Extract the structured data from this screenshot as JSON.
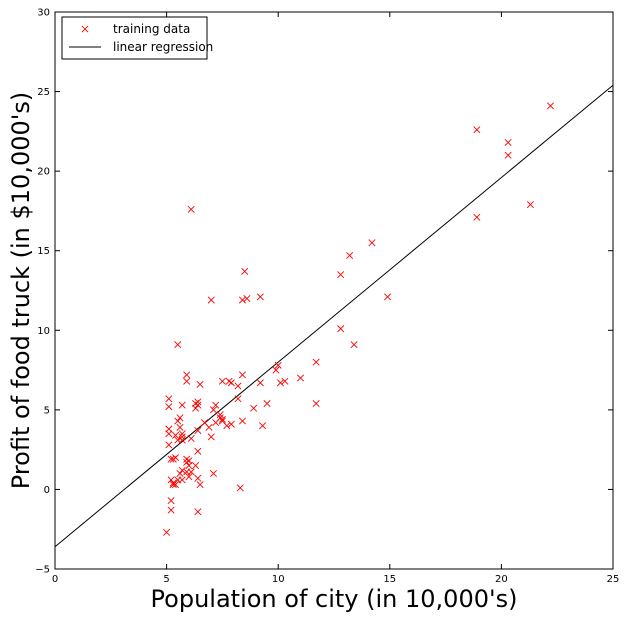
{
  "chart_data": {
    "type": "scatter",
    "xlabel": "Population of city (in 10,000's)",
    "ylabel": "Profit of food truck (in $10,000's)",
    "xlim": [
      0,
      25
    ],
    "ylim": [
      -5,
      30
    ],
    "xticks": [
      "0",
      "5",
      "10",
      "15",
      "20",
      "25"
    ],
    "yticks": [
      "−5",
      "0",
      "5",
      "10",
      "15",
      "20",
      "25",
      "30"
    ],
    "grid": false,
    "legend_position": "top-left",
    "series": [
      {
        "name": "training data",
        "marker": "x",
        "color": "#ff0000",
        "points": [
          [
            6.1,
            17.6
          ],
          [
            5.5,
            9.1
          ],
          [
            8.5,
            13.7
          ],
          [
            7.0,
            11.9
          ],
          [
            5.9,
            6.8
          ],
          [
            8.4,
            11.9
          ],
          [
            7.5,
            4.3
          ],
          [
            8.6,
            12.0
          ],
          [
            6.5,
            6.6
          ],
          [
            5.1,
            3.8
          ],
          [
            5.7,
            3.3
          ],
          [
            14.2,
            15.5
          ],
          [
            5.7,
            3.1
          ],
          [
            8.4,
            7.2
          ],
          [
            6.4,
            0.7
          ],
          [
            5.1,
            3.5
          ],
          [
            5.7,
            5.3
          ],
          [
            5.2,
            0.6
          ],
          [
            10.0,
            7.8
          ],
          [
            5.1,
            5.7
          ],
          [
            6.0,
            0.8
          ],
          [
            7.1,
            1.0
          ],
          [
            6.3,
            1.5
          ],
          [
            5.2,
            1.9
          ],
          [
            5.4,
            0.3
          ],
          [
            6.9,
            3.9
          ],
          [
            5.9,
            1.9
          ],
          [
            5.3,
            0.3
          ],
          [
            6.0,
            1.5
          ],
          [
            5.0,
            -2.7
          ],
          [
            5.6,
            3.9
          ],
          [
            5.5,
            0.6
          ],
          [
            7.5,
            4.4
          ],
          [
            6.4,
            2.4
          ],
          [
            5.9,
            1.7
          ],
          [
            5.2,
            -1.3
          ],
          [
            6.0,
            1.8
          ],
          [
            5.1,
            5.2
          ],
          [
            7.9,
            4.1
          ],
          [
            10.3,
            6.8
          ],
          [
            20.3,
            21.8
          ],
          [
            5.2,
            -0.7
          ],
          [
            6.7,
            4.2
          ],
          [
            5.5,
            3.1
          ],
          [
            7.2,
            5.3
          ],
          [
            5.7,
            3.5
          ],
          [
            5.7,
            1.2
          ],
          [
            7.2,
            4.2
          ],
          [
            6.3,
            5.1
          ],
          [
            9.9,
            7.5
          ],
          [
            5.1,
            2.8
          ],
          [
            5.6,
            1.0
          ],
          [
            6.5,
            0.3
          ],
          [
            5.3,
            1.9
          ],
          [
            6.4,
            -1.4
          ],
          [
            13.4,
            9.1
          ],
          [
            6.1,
            3.2
          ],
          [
            12.8,
            13.5
          ],
          [
            6.4,
            5.3
          ],
          [
            5.3,
            0.4
          ],
          [
            7.5,
            6.8
          ],
          [
            5.5,
            4.3
          ],
          [
            5.9,
            7.2
          ],
          [
            5.4,
            2.0
          ],
          [
            6.4,
            5.5
          ],
          [
            5.9,
            1.1
          ],
          [
            8.2,
            5.7
          ],
          [
            6.4,
            3.7
          ],
          [
            6.3,
            5.4
          ],
          [
            5.7,
            0.6
          ],
          [
            7.8,
            6.8
          ],
          [
            8.3,
            0.1
          ],
          [
            8.2,
            6.5
          ],
          [
            9.3,
            4.0
          ],
          [
            5.4,
            3.4
          ],
          [
            7.4,
            4.5
          ],
          [
            7.0,
            3.3
          ],
          [
            6.1,
            1.1
          ],
          [
            8.9,
            5.1
          ],
          [
            18.9,
            22.6
          ],
          [
            7.9,
            6.7
          ],
          [
            22.2,
            24.1
          ],
          [
            7.4,
            4.7
          ],
          [
            12.8,
            10.1
          ],
          [
            10.1,
            6.7
          ],
          [
            11.7,
            5.4
          ],
          [
            11.0,
            7.0
          ],
          [
            9.5,
            5.4
          ],
          [
            9.2,
            6.7
          ],
          [
            13.2,
            14.7
          ],
          [
            9.2,
            12.1
          ],
          [
            18.9,
            17.1
          ],
          [
            21.3,
            17.9
          ],
          [
            20.3,
            21.0
          ],
          [
            14.9,
            12.1
          ],
          [
            11.7,
            8.0
          ],
          [
            8.4,
            4.3
          ],
          [
            7.7,
            4.0
          ],
          [
            7.1,
            5.0
          ],
          [
            5.6,
            4.5
          ]
        ]
      },
      {
        "name": "linear regression",
        "style": "line",
        "color": "#000000",
        "x": [
          0,
          25
        ],
        "y": [
          -3.6,
          25.4
        ]
      }
    ]
  }
}
